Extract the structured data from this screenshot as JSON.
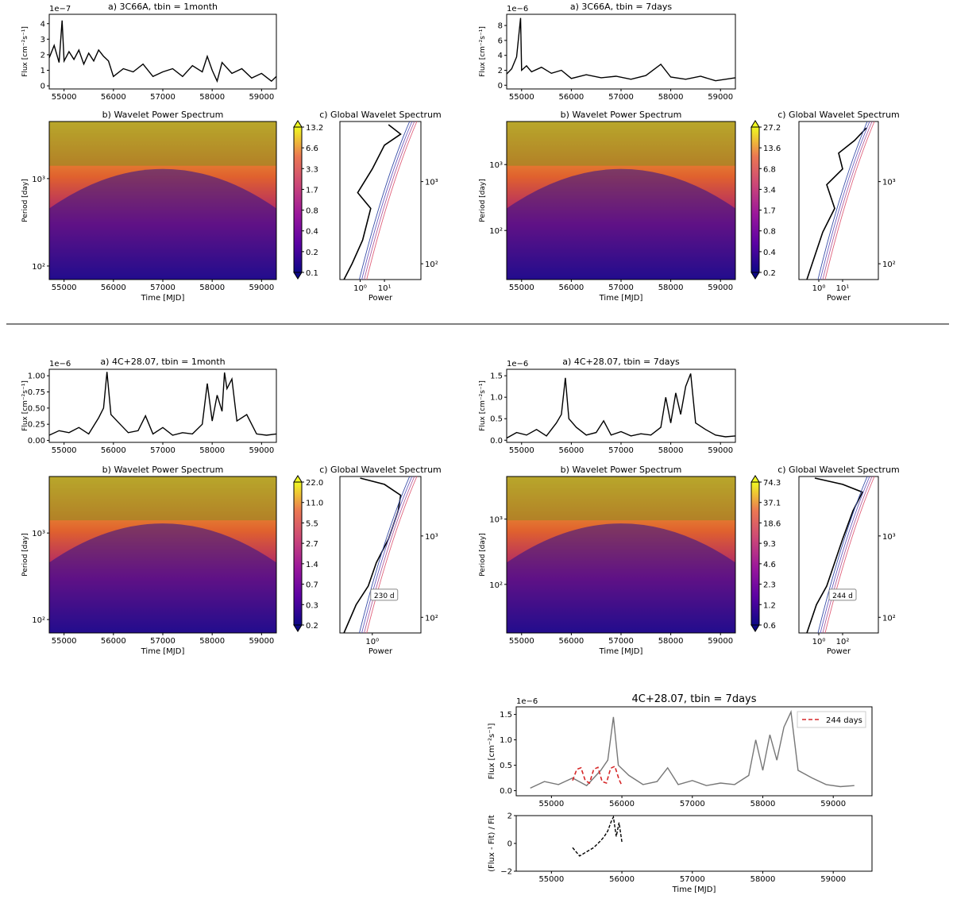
{
  "chart_data": [
    {
      "panel": "3C66A-1month-lightcurve",
      "type": "line",
      "title": "a) 3C66A, tbin = 1month",
      "xlabel": "",
      "ylabel": "Flux [cm⁻²s⁻¹]",
      "exponent": "1e−7",
      "xlim": [
        54700,
        59300
      ],
      "ylim": [
        -0.2,
        4.6
      ],
      "xticks": [
        55000,
        56000,
        57000,
        58000,
        59000
      ],
      "yticks": [
        0,
        1,
        2,
        3,
        4
      ],
      "x": [
        54700,
        54800,
        54900,
        54960,
        55000,
        55100,
        55200,
        55300,
        55400,
        55500,
        55600,
        55700,
        55800,
        55900,
        56000,
        56200,
        56400,
        56600,
        56800,
        57000,
        57200,
        57400,
        57600,
        57800,
        57900,
        58000,
        58100,
        58200,
        58400,
        58600,
        58800,
        59000,
        59200,
        59300
      ],
      "y": [
        1.8,
        2.6,
        1.5,
        4.2,
        1.6,
        2.2,
        1.7,
        2.3,
        1.4,
        2.1,
        1.6,
        2.3,
        1.9,
        1.6,
        0.6,
        1.1,
        0.9,
        1.4,
        0.6,
        0.9,
        1.1,
        0.6,
        1.3,
        0.9,
        1.9,
        1.0,
        0.3,
        1.5,
        0.8,
        1.1,
        0.5,
        0.8,
        0.3,
        0.6
      ]
    },
    {
      "panel": "3C66A-7days-lightcurve",
      "type": "line",
      "title": "a) 3C66A, tbin = 7days",
      "xlabel": "",
      "ylabel": "Flux [cm⁻²s⁻¹]",
      "exponent": "1e−6",
      "xlim": [
        54700,
        59300
      ],
      "ylim": [
        -0.5,
        9.5
      ],
      "xticks": [
        55000,
        56000,
        57000,
        58000,
        59000
      ],
      "yticks": [
        0,
        2,
        4,
        6,
        8
      ],
      "x": [
        54700,
        54800,
        54900,
        54980,
        55000,
        55100,
        55200,
        55400,
        55600,
        55800,
        56000,
        56300,
        56600,
        56900,
        57200,
        57500,
        57800,
        58000,
        58300,
        58600,
        58900,
        59300
      ],
      "y": [
        1.5,
        2.2,
        3.8,
        9.0,
        2.0,
        2.6,
        1.8,
        2.4,
        1.6,
        2.0,
        0.9,
        1.4,
        1.0,
        1.2,
        0.8,
        1.3,
        2.8,
        1.1,
        0.8,
        1.2,
        0.6,
        1.0
      ]
    },
    {
      "panel": "4C28-1month-lightcurve",
      "type": "line",
      "title": "a) 4C+28.07, tbin = 1month",
      "xlabel": "",
      "ylabel": "Flux [cm⁻²s⁻¹]",
      "exponent": "1e−6",
      "xlim": [
        54700,
        59300
      ],
      "ylim": [
        -0.03,
        1.1
      ],
      "xticks": [
        55000,
        56000,
        57000,
        58000,
        59000
      ],
      "yticks": [
        0.0,
        0.25,
        0.5,
        0.75,
        1.0
      ],
      "ytick_labels": [
        "0.00",
        "0.25",
        "0.50",
        "0.75",
        "1.00"
      ],
      "x": [
        54700,
        54900,
        55100,
        55300,
        55500,
        55700,
        55800,
        55870,
        55950,
        56100,
        56300,
        56500,
        56650,
        56800,
        57000,
        57200,
        57400,
        57600,
        57800,
        57900,
        58000,
        58100,
        58200,
        58250,
        58300,
        58400,
        58500,
        58700,
        58900,
        59100,
        59300
      ],
      "y": [
        0.08,
        0.15,
        0.12,
        0.2,
        0.1,
        0.35,
        0.5,
        1.06,
        0.4,
        0.28,
        0.12,
        0.15,
        0.38,
        0.1,
        0.2,
        0.08,
        0.12,
        0.1,
        0.25,
        0.88,
        0.3,
        0.7,
        0.45,
        1.05,
        0.8,
        0.95,
        0.3,
        0.4,
        0.1,
        0.08,
        0.1
      ]
    },
    {
      "panel": "4C28-7days-lightcurve",
      "type": "line",
      "title": "a) 4C+28.07, tbin = 7days",
      "xlabel": "",
      "ylabel": "Flux [cm⁻²s⁻¹]",
      "exponent": "1e−6",
      "xlim": [
        54700,
        59300
      ],
      "ylim": [
        -0.05,
        1.65
      ],
      "xticks": [
        55000,
        56000,
        57000,
        58000,
        59000
      ],
      "yticks": [
        0.0,
        0.5,
        1.0,
        1.5
      ],
      "ytick_labels": [
        "0.0",
        "0.5",
        "1.0",
        "1.5"
      ],
      "x": [
        54700,
        54900,
        55100,
        55300,
        55500,
        55700,
        55800,
        55880,
        55950,
        56100,
        56300,
        56500,
        56650,
        56800,
        57000,
        57200,
        57400,
        57600,
        57800,
        57900,
        58000,
        58100,
        58200,
        58300,
        58400,
        58500,
        58700,
        58900,
        59100,
        59300
      ],
      "y": [
        0.05,
        0.18,
        0.12,
        0.25,
        0.1,
        0.4,
        0.6,
        1.45,
        0.5,
        0.3,
        0.12,
        0.18,
        0.45,
        0.12,
        0.2,
        0.1,
        0.15,
        0.12,
        0.3,
        1.0,
        0.4,
        1.1,
        0.6,
        1.25,
        1.55,
        0.4,
        0.25,
        0.12,
        0.08,
        0.1
      ]
    },
    {
      "panel": "3C66A-1month-wavelet",
      "type": "heatmap",
      "title": "b) Wavelet Power Spectrum",
      "xlabel": "Time [MJD]",
      "ylabel": "Period [day]",
      "xlim": [
        54700,
        59300
      ],
      "ylim_log": [
        70,
        4500
      ],
      "xticks": [
        55000,
        56000,
        57000,
        58000,
        59000
      ],
      "yticks_log": [
        100,
        1000
      ],
      "ytick_labels": [
        "10²",
        "10³"
      ],
      "colorbar_levels": [
        "0.1",
        "0.2",
        "0.4",
        "0.8",
        "1.7",
        "3.3",
        "6.6",
        "13.2"
      ]
    },
    {
      "panel": "3C66A-7days-wavelet",
      "type": "heatmap",
      "title": "b) Wavelet Power Spectrum",
      "xlabel": "Time [MJD]",
      "ylabel": "Period [day]",
      "xlim": [
        54700,
        59300
      ],
      "ylim_log": [
        18,
        4500
      ],
      "xticks": [
        55000,
        56000,
        57000,
        58000,
        59000
      ],
      "yticks_log": [
        100,
        1000
      ],
      "ytick_labels": [
        "10²",
        "10³"
      ],
      "colorbar_levels": [
        "0.2",
        "0.4",
        "0.8",
        "1.7",
        "3.4",
        "6.8",
        "13.6",
        "27.2"
      ]
    },
    {
      "panel": "4C28-1month-wavelet",
      "type": "heatmap",
      "title": "b) Wavelet Power Spectrum",
      "xlabel": "Time [MJD]",
      "ylabel": "Period [day]",
      "xlim": [
        54700,
        59300
      ],
      "ylim_log": [
        70,
        4500
      ],
      "xticks": [
        55000,
        56000,
        57000,
        58000,
        59000
      ],
      "yticks_log": [
        100,
        1000
      ],
      "ytick_labels": [
        "10²",
        "10³"
      ],
      "colorbar_levels": [
        "0.2",
        "0.3",
        "0.7",
        "1.4",
        "2.7",
        "5.5",
        "11.0",
        "22.0"
      ]
    },
    {
      "panel": "4C28-7days-wavelet",
      "type": "heatmap",
      "title": "b) Wavelet Power Spectrum",
      "xlabel": "Time [MJD]",
      "ylabel": "Period [day]",
      "xlim": [
        54700,
        59300
      ],
      "ylim_log": [
        18,
        4500
      ],
      "xticks": [
        55000,
        56000,
        57000,
        58000,
        59000
      ],
      "yticks_log": [
        100,
        1000
      ],
      "ytick_labels": [
        "10²",
        "10³"
      ],
      "colorbar_levels": [
        "0.6",
        "1.2",
        "2.3",
        "4.6",
        "9.3",
        "18.6",
        "37.1",
        "74.3"
      ]
    },
    {
      "panel": "3C66A-1month-global",
      "type": "line",
      "title": "c) Global Wavelet Spectrum",
      "xlabel": "Power",
      "ylabel": "",
      "xticks_log": [
        1,
        10
      ],
      "xtick_labels": [
        "10⁰",
        "10¹"
      ],
      "yticks_log": [
        100,
        1000
      ],
      "ytick_labels": [
        "10²",
        "10³"
      ]
    },
    {
      "panel": "3C66A-7days-global",
      "type": "line",
      "title": "c) Global Wavelet Spectrum",
      "xlabel": "Power",
      "ylabel": "",
      "xticks_log": [
        1,
        10
      ],
      "xtick_labels": [
        "10⁰",
        "10¹"
      ],
      "yticks_log": [
        100,
        1000
      ],
      "ytick_labels": [
        "10²",
        "10³"
      ]
    },
    {
      "panel": "4C28-1month-global",
      "type": "line",
      "title": "c) Global Wavelet Spectrum",
      "xlabel": "Power",
      "ylabel": "",
      "xticks_log": [
        1
      ],
      "xtick_labels": [
        "10⁰"
      ],
      "yticks_log": [
        100,
        1000
      ],
      "ytick_labels": [
        "10²",
        "10³"
      ],
      "annotation": "230 d"
    },
    {
      "panel": "4C28-7days-global",
      "type": "line",
      "title": "c) Global Wavelet Spectrum",
      "xlabel": "Power",
      "ylabel": "",
      "xticks_log": [
        1,
        100
      ],
      "xtick_labels": [
        "10⁰",
        "10²"
      ],
      "yticks_log": [
        100,
        1000
      ],
      "ytick_labels": [
        "10²",
        "10³"
      ],
      "annotation": "244 d"
    },
    {
      "panel": "4C28-fit",
      "type": "line",
      "title": "4C+28.07, tbin = 7days",
      "xlabel": "",
      "ylabel": "Flux [cm⁻²s⁻¹]",
      "exponent": "1e−6",
      "xlim": [
        54500,
        59550
      ],
      "ylim": [
        -0.1,
        1.65
      ],
      "xticks": [
        55000,
        56000,
        57000,
        58000,
        59000
      ],
      "yticks": [
        0.0,
        0.5,
        1.0,
        1.5
      ],
      "ytick_labels": [
        "0.0",
        "0.5",
        "1.0",
        "1.5"
      ],
      "legend": "244 days",
      "legend_position": "top-right",
      "series": [
        {
          "x": [
            54700,
            54900,
            55100,
            55300,
            55500,
            55700,
            55800,
            55880,
            55950,
            56100,
            56300,
            56500,
            56650,
            56800,
            57000,
            57200,
            57400,
            57600,
            57800,
            57900,
            58000,
            58100,
            58200,
            58300,
            58400,
            58500,
            58700,
            58900,
            59100,
            59300
          ],
          "y": [
            0.05,
            0.18,
            0.12,
            0.25,
            0.1,
            0.4,
            0.6,
            1.45,
            0.5,
            0.3,
            0.12,
            0.18,
            0.45,
            0.12,
            0.2,
            0.1,
            0.15,
            0.12,
            0.3,
            1.0,
            0.4,
            1.1,
            0.6,
            1.25,
            1.55,
            0.4,
            0.25,
            0.12,
            0.08,
            0.1
          ]
        },
        {
          "name": "244 days",
          "x": [
            55300,
            55360,
            55420,
            55480,
            55540,
            55600,
            55660,
            55720,
            55780,
            55840,
            55900,
            55960,
            56000
          ],
          "y": [
            0.2,
            0.42,
            0.45,
            0.2,
            0.15,
            0.42,
            0.46,
            0.18,
            0.15,
            0.44,
            0.48,
            0.22,
            0.1
          ]
        }
      ]
    },
    {
      "panel": "4C28-residual",
      "type": "line",
      "title": "",
      "xlabel": "Time [MJD]",
      "ylabel": "(Flux - Fit) / Fit",
      "xlim": [
        54500,
        59550
      ],
      "ylim": [
        -2,
        2
      ],
      "xticks": [
        55000,
        56000,
        57000,
        58000,
        59000
      ],
      "yticks": [
        -2,
        0,
        2
      ],
      "ytick_labels": [
        "−2",
        "0",
        "2"
      ],
      "x": [
        55300,
        55400,
        55500,
        55600,
        55700,
        55750,
        55800,
        55850,
        55880,
        55920,
        55960,
        56000
      ],
      "y": [
        -0.3,
        -0.9,
        -0.6,
        -0.3,
        0.2,
        0.5,
        0.9,
        1.6,
        1.9,
        0.5,
        1.5,
        0.1
      ]
    }
  ]
}
